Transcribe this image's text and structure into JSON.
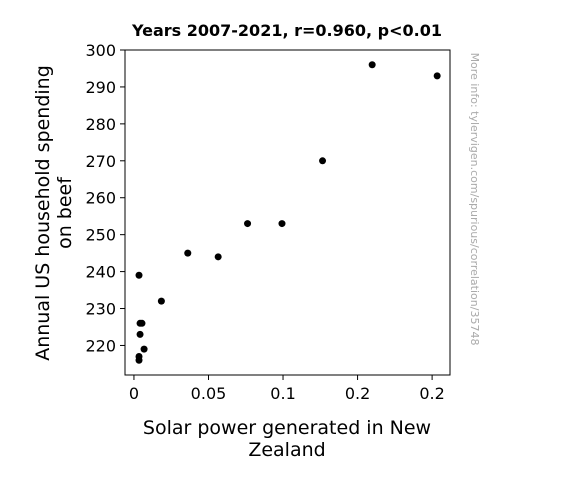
{
  "chart_data": {
    "type": "scatter",
    "title": "Years 2007-2021, r=0.960, p<0.01",
    "xlabel_lines": [
      "Solar power generated in New",
      "Zealand"
    ],
    "ylabel_lines": [
      "Annual US household spending",
      "on beef"
    ],
    "watermark": "More info: tylervigen.com/spurious/correlation/35748",
    "xlim": [
      -0.006,
      0.212
    ],
    "ylim": [
      212,
      300
    ],
    "x_ticks": [
      {
        "value": 0,
        "label": "0"
      },
      {
        "value": 0.05,
        "label": "0.05"
      },
      {
        "value": 0.1,
        "label": "0.1"
      },
      {
        "value": 0.15,
        "label": "0.2"
      },
      {
        "value": 0.2,
        "label": "0.2"
      }
    ],
    "y_ticks": [
      {
        "value": 220,
        "label": "220"
      },
      {
        "value": 230,
        "label": "230"
      },
      {
        "value": 240,
        "label": "240"
      },
      {
        "value": 250,
        "label": "250"
      },
      {
        "value": 260,
        "label": "260"
      },
      {
        "value": 270,
        "label": "270"
      },
      {
        "value": 280,
        "label": "280"
      },
      {
        "value": 290,
        "label": "290"
      },
      {
        "value": 300,
        "label": "300"
      }
    ],
    "point_color": "#000000",
    "grid": false,
    "points": [
      {
        "x": 0.0034,
        "y": 216
      },
      {
        "x": 0.0034,
        "y": 217
      },
      {
        "x": 0.0068,
        "y": 219
      },
      {
        "x": 0.0041,
        "y": 223
      },
      {
        "x": 0.0041,
        "y": 226
      },
      {
        "x": 0.0054,
        "y": 226
      },
      {
        "x": 0.0034,
        "y": 239
      },
      {
        "x": 0.0184,
        "y": 232
      },
      {
        "x": 0.0361,
        "y": 245
      },
      {
        "x": 0.0565,
        "y": 244
      },
      {
        "x": 0.0762,
        "y": 253
      },
      {
        "x": 0.0993,
        "y": 253
      },
      {
        "x": 0.1265,
        "y": 270
      },
      {
        "x": 0.1598,
        "y": 296
      },
      {
        "x": 0.2034,
        "y": 293
      }
    ]
  }
}
